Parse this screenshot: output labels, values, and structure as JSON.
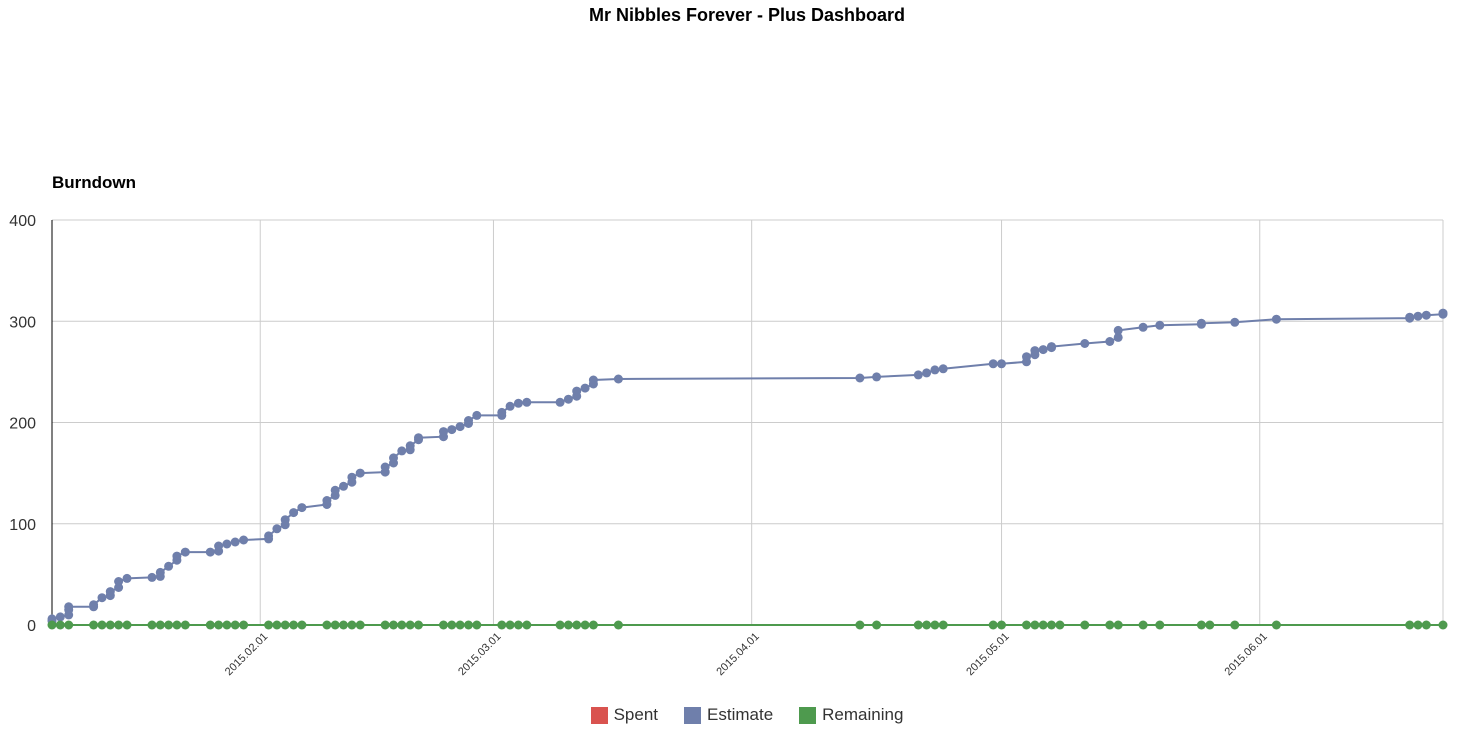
{
  "page": {
    "title": "Mr Nibbles Forever - Plus Dashboard"
  },
  "colors": {
    "spent": "#d9534f",
    "estimate": "#6f7fab",
    "remaining": "#4e9a4e",
    "grid": "#cccccc",
    "axis": "#000000"
  },
  "chart_data": {
    "type": "line",
    "title": "Burndown",
    "xlabel": "",
    "ylabel": "",
    "ylim": [
      0,
      400
    ],
    "y_ticks": [
      0,
      100,
      200,
      300,
      400
    ],
    "xlim": [
      "2015-01-07",
      "2015-06-23"
    ],
    "x_ticks": [
      {
        "date": "2015-02-01",
        "label": "2015.02.01"
      },
      {
        "date": "2015-03-01",
        "label": "2015.03.01"
      },
      {
        "date": "2015-04-01",
        "label": "2015.04.01"
      },
      {
        "date": "2015-05-01",
        "label": "2015.05.01"
      },
      {
        "date": "2015-06-01",
        "label": "2015.06.01"
      }
    ],
    "grid": true,
    "legend_position": "bottom",
    "series": [
      {
        "name": "Spent",
        "color_key": "spent",
        "points": []
      },
      {
        "name": "Estimate",
        "color_key": "estimate",
        "points": [
          [
            "2015-01-07",
            4
          ],
          [
            "2015-01-07",
            6
          ],
          [
            "2015-01-08",
            8
          ],
          [
            "2015-01-09",
            10
          ],
          [
            "2015-01-09",
            15
          ],
          [
            "2015-01-09",
            18
          ],
          [
            "2015-01-12",
            18
          ],
          [
            "2015-01-12",
            20
          ],
          [
            "2015-01-13",
            27
          ],
          [
            "2015-01-14",
            29
          ],
          [
            "2015-01-14",
            33
          ],
          [
            "2015-01-15",
            37
          ],
          [
            "2015-01-15",
            43
          ],
          [
            "2015-01-16",
            46
          ],
          [
            "2015-01-19",
            47
          ],
          [
            "2015-01-20",
            48
          ],
          [
            "2015-01-20",
            52
          ],
          [
            "2015-01-21",
            58
          ],
          [
            "2015-01-22",
            64
          ],
          [
            "2015-01-22",
            68
          ],
          [
            "2015-01-23",
            72
          ],
          [
            "2015-01-26",
            72
          ],
          [
            "2015-01-27",
            73
          ],
          [
            "2015-01-27",
            78
          ],
          [
            "2015-01-28",
            80
          ],
          [
            "2015-01-29",
            82
          ],
          [
            "2015-01-30",
            84
          ],
          [
            "2015-02-02",
            85
          ],
          [
            "2015-02-02",
            88
          ],
          [
            "2015-02-03",
            95
          ],
          [
            "2015-02-04",
            99
          ],
          [
            "2015-02-04",
            104
          ],
          [
            "2015-02-05",
            111
          ],
          [
            "2015-02-06",
            116
          ],
          [
            "2015-02-09",
            119
          ],
          [
            "2015-02-09",
            123
          ],
          [
            "2015-02-10",
            128
          ],
          [
            "2015-02-10",
            133
          ],
          [
            "2015-02-11",
            137
          ],
          [
            "2015-02-12",
            141
          ],
          [
            "2015-02-12",
            146
          ],
          [
            "2015-02-13",
            150
          ],
          [
            "2015-02-16",
            151
          ],
          [
            "2015-02-16",
            156
          ],
          [
            "2015-02-17",
            160
          ],
          [
            "2015-02-17",
            165
          ],
          [
            "2015-02-18",
            172
          ],
          [
            "2015-02-19",
            173
          ],
          [
            "2015-02-19",
            177
          ],
          [
            "2015-02-20",
            183
          ],
          [
            "2015-02-20",
            185
          ],
          [
            "2015-02-23",
            186
          ],
          [
            "2015-02-23",
            191
          ],
          [
            "2015-02-24",
            193
          ],
          [
            "2015-02-25",
            196
          ],
          [
            "2015-02-26",
            199
          ],
          [
            "2015-02-26",
            202
          ],
          [
            "2015-02-27",
            207
          ],
          [
            "2015-03-02",
            207
          ],
          [
            "2015-03-02",
            210
          ],
          [
            "2015-03-03",
            216
          ],
          [
            "2015-03-04",
            219
          ],
          [
            "2015-03-05",
            220
          ],
          [
            "2015-03-09",
            220
          ],
          [
            "2015-03-10",
            223
          ],
          [
            "2015-03-11",
            226
          ],
          [
            "2015-03-11",
            231
          ],
          [
            "2015-03-12",
            234
          ],
          [
            "2015-03-13",
            238
          ],
          [
            "2015-03-13",
            242
          ],
          [
            "2015-03-16",
            243
          ],
          [
            "2015-04-14",
            244
          ],
          [
            "2015-04-16",
            245
          ],
          [
            "2015-04-21",
            247
          ],
          [
            "2015-04-22",
            249
          ],
          [
            "2015-04-23",
            252
          ],
          [
            "2015-04-24",
            253
          ],
          [
            "2015-04-30",
            258
          ],
          [
            "2015-05-01",
            258
          ],
          [
            "2015-05-04",
            260
          ],
          [
            "2015-05-04",
            265
          ],
          [
            "2015-05-05",
            267
          ],
          [
            "2015-05-05",
            271
          ],
          [
            "2015-05-06",
            272
          ],
          [
            "2015-05-07",
            274
          ],
          [
            "2015-05-07",
            275
          ],
          [
            "2015-05-11",
            278
          ],
          [
            "2015-05-14",
            280
          ],
          [
            "2015-05-15",
            284
          ],
          [
            "2015-05-15",
            291
          ],
          [
            "2015-05-18",
            294
          ],
          [
            "2015-05-20",
            296
          ],
          [
            "2015-05-25",
            297
          ],
          [
            "2015-05-25",
            298
          ],
          [
            "2015-05-29",
            299
          ],
          [
            "2015-06-03",
            302
          ],
          [
            "2015-06-19",
            303
          ],
          [
            "2015-06-19",
            304
          ],
          [
            "2015-06-20",
            305
          ],
          [
            "2015-06-21",
            306
          ],
          [
            "2015-06-23",
            307
          ],
          [
            "2015-06-23",
            308
          ]
        ]
      },
      {
        "name": "Remaining",
        "color_key": "remaining",
        "points": [
          [
            "2015-01-07",
            0
          ],
          [
            "2015-01-08",
            0
          ],
          [
            "2015-01-09",
            0
          ],
          [
            "2015-01-12",
            0
          ],
          [
            "2015-01-13",
            0
          ],
          [
            "2015-01-14",
            0
          ],
          [
            "2015-01-15",
            0
          ],
          [
            "2015-01-16",
            0
          ],
          [
            "2015-01-19",
            0
          ],
          [
            "2015-01-20",
            0
          ],
          [
            "2015-01-21",
            0
          ],
          [
            "2015-01-22",
            0
          ],
          [
            "2015-01-23",
            0
          ],
          [
            "2015-01-26",
            0
          ],
          [
            "2015-01-27",
            0
          ],
          [
            "2015-01-28",
            0
          ],
          [
            "2015-01-29",
            0
          ],
          [
            "2015-01-30",
            0
          ],
          [
            "2015-02-02",
            0
          ],
          [
            "2015-02-03",
            0
          ],
          [
            "2015-02-04",
            0
          ],
          [
            "2015-02-05",
            0
          ],
          [
            "2015-02-06",
            0
          ],
          [
            "2015-02-09",
            0
          ],
          [
            "2015-02-10",
            0
          ],
          [
            "2015-02-11",
            0
          ],
          [
            "2015-02-12",
            0
          ],
          [
            "2015-02-13",
            0
          ],
          [
            "2015-02-16",
            0
          ],
          [
            "2015-02-17",
            0
          ],
          [
            "2015-02-18",
            0
          ],
          [
            "2015-02-19",
            0
          ],
          [
            "2015-02-20",
            0
          ],
          [
            "2015-02-23",
            0
          ],
          [
            "2015-02-24",
            0
          ],
          [
            "2015-02-25",
            0
          ],
          [
            "2015-02-26",
            0
          ],
          [
            "2015-02-27",
            0
          ],
          [
            "2015-03-02",
            0
          ],
          [
            "2015-03-03",
            0
          ],
          [
            "2015-03-04",
            0
          ],
          [
            "2015-03-05",
            0
          ],
          [
            "2015-03-09",
            0
          ],
          [
            "2015-03-10",
            0
          ],
          [
            "2015-03-11",
            0
          ],
          [
            "2015-03-12",
            0
          ],
          [
            "2015-03-13",
            0
          ],
          [
            "2015-03-16",
            0
          ],
          [
            "2015-04-14",
            0
          ],
          [
            "2015-04-16",
            0
          ],
          [
            "2015-04-21",
            0
          ],
          [
            "2015-04-22",
            0
          ],
          [
            "2015-04-23",
            0
          ],
          [
            "2015-04-24",
            0
          ],
          [
            "2015-04-30",
            0
          ],
          [
            "2015-05-01",
            0
          ],
          [
            "2015-05-04",
            0
          ],
          [
            "2015-05-05",
            0
          ],
          [
            "2015-05-06",
            0
          ],
          [
            "2015-05-07",
            0
          ],
          [
            "2015-05-08",
            0
          ],
          [
            "2015-05-11",
            0
          ],
          [
            "2015-05-14",
            0
          ],
          [
            "2015-05-15",
            0
          ],
          [
            "2015-05-18",
            0
          ],
          [
            "2015-05-20",
            0
          ],
          [
            "2015-05-25",
            0
          ],
          [
            "2015-05-26",
            0
          ],
          [
            "2015-05-29",
            0
          ],
          [
            "2015-06-03",
            0
          ],
          [
            "2015-06-19",
            0
          ],
          [
            "2015-06-20",
            0
          ],
          [
            "2015-06-21",
            0
          ],
          [
            "2015-06-23",
            0
          ]
        ]
      }
    ]
  },
  "legend": {
    "items": [
      "Spent",
      "Estimate",
      "Remaining"
    ]
  }
}
